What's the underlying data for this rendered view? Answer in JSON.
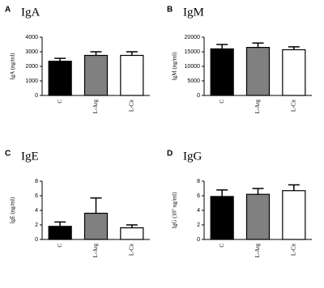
{
  "chart_data": [
    {
      "type": "bar",
      "label": "A",
      "title": "IgA",
      "y_label": "IgA (ng/ml)",
      "categories": [
        "C",
        "L-Arg",
        "L-Cit"
      ],
      "values": [
        2350,
        2750,
        2750
      ],
      "errors": [
        200,
        250,
        250
      ],
      "colors": [
        "#000000",
        "#808080",
        "#ffffff"
      ],
      "ylim": [
        0,
        4000
      ],
      "yticks": [
        0,
        1000,
        2000,
        3000,
        4000
      ]
    },
    {
      "type": "bar",
      "label": "B",
      "title": "IgM",
      "y_label": "IgM (ng/ml)",
      "categories": [
        "C",
        "L-Arg",
        "L-Cit"
      ],
      "values": [
        16000,
        16500,
        15700
      ],
      "errors": [
        1500,
        1500,
        1000
      ],
      "colors": [
        "#000000",
        "#808080",
        "#ffffff"
      ],
      "ylim": [
        0,
        20000
      ],
      "yticks": [
        0,
        5000,
        10000,
        15000,
        20000
      ]
    },
    {
      "type": "bar",
      "label": "C",
      "title": "IgE",
      "y_label": "IgE (ng/ml)",
      "categories": [
        "C",
        "L-Arg",
        "L-Cit"
      ],
      "values": [
        1.8,
        3.6,
        1.6
      ],
      "errors": [
        0.6,
        2.1,
        0.4
      ],
      "colors": [
        "#000000",
        "#808080",
        "#ffffff"
      ],
      "ylim": [
        0,
        8
      ],
      "yticks": [
        0,
        2,
        4,
        6,
        8
      ]
    },
    {
      "type": "bar",
      "label": "D",
      "title": "IgG",
      "y_label": "IgG (10⁷ ng/ml)",
      "categories": [
        "C",
        "L-Arg",
        "L-Cit"
      ],
      "values": [
        5.9,
        6.2,
        6.7
      ],
      "errors": [
        0.9,
        0.8,
        0.8
      ],
      "colors": [
        "#000000",
        "#808080",
        "#ffffff"
      ],
      "ylim": [
        0,
        8
      ],
      "yticks": [
        0,
        2,
        4,
        6,
        8
      ]
    }
  ]
}
